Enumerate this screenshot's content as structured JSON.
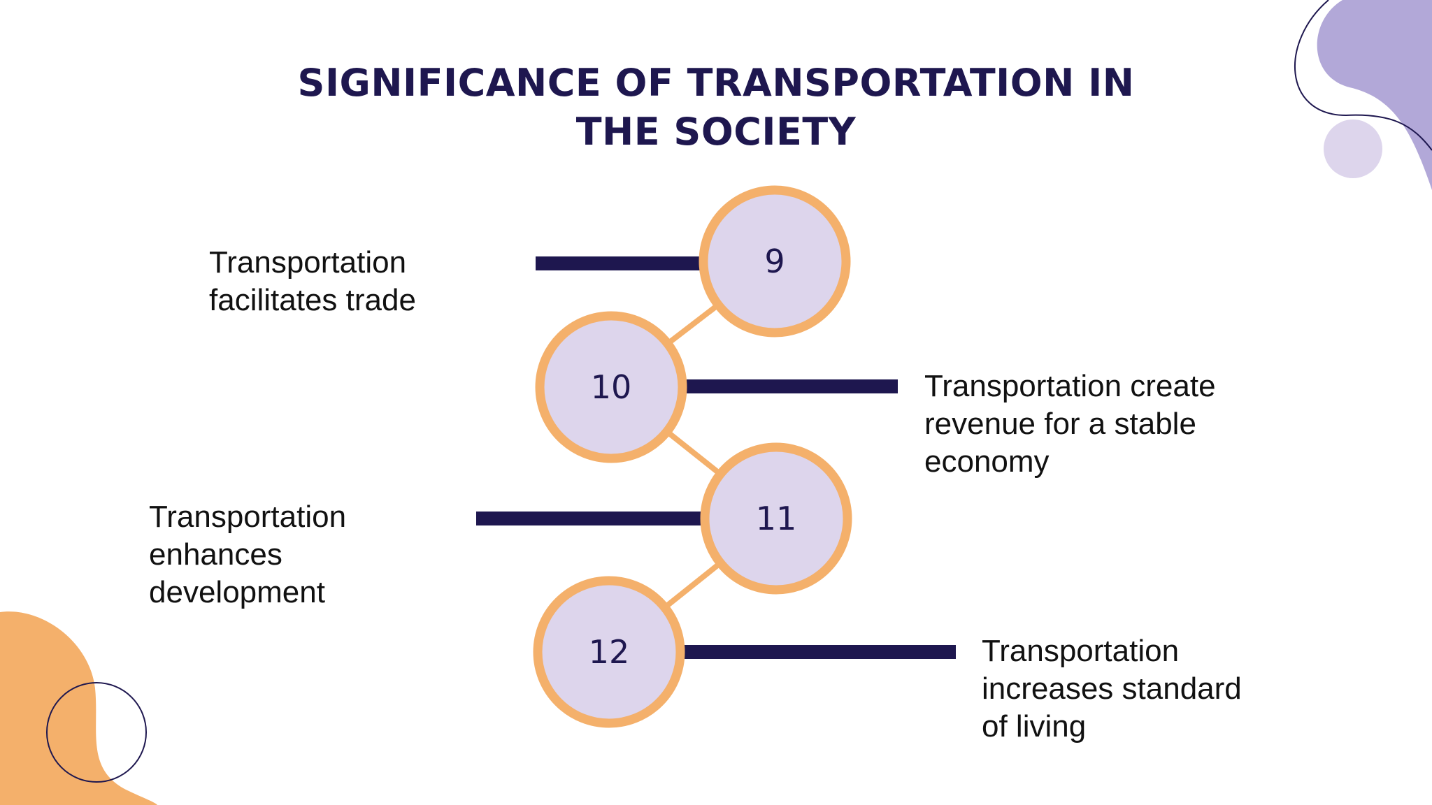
{
  "title": {
    "line1": "SIGNIFICANCE OF TRANSPORTATION IN",
    "line2": "THE SOCIETY"
  },
  "colors": {
    "navy": "#1e174f",
    "orange": "#f4b06b",
    "lavender": "#ddd5ec",
    "purple_blob": "#b2a8d8"
  },
  "steps": [
    {
      "number": "9",
      "lines": [
        "Transportation",
        "facilitates trade"
      ]
    },
    {
      "number": "10",
      "lines": [
        "Transportation create",
        "revenue for a stable",
        "economy"
      ]
    },
    {
      "number": "11",
      "lines": [
        "Transportation",
        "enhances",
        "development"
      ]
    },
    {
      "number": "12",
      "lines": [
        "Transportation",
        "increases standard",
        "of living"
      ]
    }
  ]
}
